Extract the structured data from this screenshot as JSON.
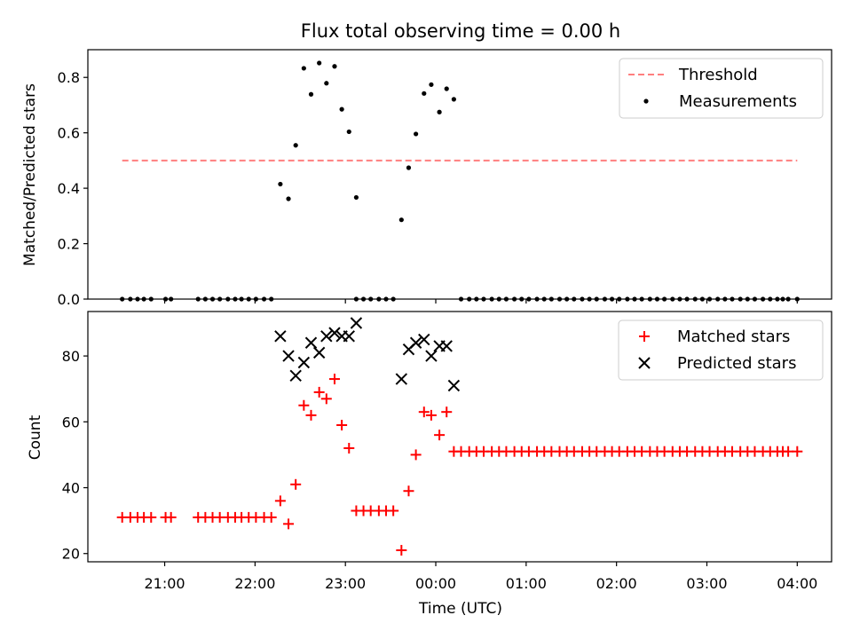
{
  "chart_data": {
    "type": "scatter",
    "title": "Flux total observing time = 0.00 h",
    "xlabel": "Time (UTC)",
    "x_ticks": [
      "21:00",
      "22:00",
      "23:00",
      "00:00",
      "01:00",
      "02:00",
      "03:00",
      "04:00"
    ],
    "x_tick_hours": [
      21,
      22,
      23,
      24,
      25,
      26,
      27,
      28
    ],
    "xlim": [
      20.15,
      28.38
    ],
    "panels": [
      {
        "ylabel": "Matched/Predicted stars",
        "ylim": [
          0,
          0.9
        ],
        "y_ticks": [
          0.0,
          0.2,
          0.4,
          0.6,
          0.8
        ],
        "y_tick_labels": [
          "0.0",
          "0.2",
          "0.4",
          "0.6",
          "0.8"
        ],
        "legend_position": "top-right",
        "threshold": {
          "name": "Threshold",
          "value": 0.5,
          "x_range": [
            20.53,
            28.0
          ],
          "color": "#ff7f7f"
        },
        "series": [
          {
            "name": "Measurements",
            "marker": "dot",
            "color": "#000000",
            "points": [
              [
                20.53,
                0
              ],
              [
                20.62,
                0
              ],
              [
                20.7,
                0
              ],
              [
                20.77,
                0
              ],
              [
                20.85,
                0
              ],
              [
                21.01,
                0
              ],
              [
                21.07,
                0
              ],
              [
                21.37,
                0
              ],
              [
                21.45,
                0
              ],
              [
                21.53,
                0
              ],
              [
                21.61,
                0
              ],
              [
                21.7,
                0
              ],
              [
                21.78,
                0
              ],
              [
                21.85,
                0
              ],
              [
                21.93,
                0
              ],
              [
                22.01,
                0
              ],
              [
                22.1,
                0
              ],
              [
                22.18,
                0
              ],
              [
                22.28,
                0.415
              ],
              [
                22.37,
                0.362
              ],
              [
                22.45,
                0.555
              ],
              [
                22.54,
                0.833
              ],
              [
                22.62,
                0.739
              ],
              [
                22.71,
                0.852
              ],
              [
                22.79,
                0.779
              ],
              [
                22.88,
                0.84
              ],
              [
                22.96,
                0.685
              ],
              [
                23.04,
                0.604
              ],
              [
                23.12,
                0.367
              ],
              [
                23.12,
                0
              ],
              [
                23.2,
                0
              ],
              [
                23.28,
                0
              ],
              [
                23.37,
                0
              ],
              [
                23.45,
                0
              ],
              [
                23.53,
                0
              ],
              [
                23.62,
                0.286
              ],
              [
                23.7,
                0.474
              ],
              [
                23.78,
                0.596
              ],
              [
                23.87,
                0.742
              ],
              [
                23.95,
                0.774
              ],
              [
                24.04,
                0.675
              ],
              [
                24.12,
                0.759
              ],
              [
                24.2,
                0.721
              ],
              [
                24.28,
                0
              ],
              [
                24.37,
                0
              ],
              [
                24.45,
                0
              ],
              [
                24.53,
                0
              ],
              [
                24.62,
                0
              ],
              [
                24.7,
                0
              ],
              [
                24.78,
                0
              ],
              [
                24.87,
                0
              ],
              [
                24.95,
                0
              ],
              [
                25.03,
                0
              ],
              [
                25.12,
                0
              ],
              [
                25.2,
                0
              ],
              [
                25.28,
                0
              ],
              [
                25.37,
                0
              ],
              [
                25.45,
                0
              ],
              [
                25.53,
                0
              ],
              [
                25.62,
                0
              ],
              [
                25.7,
                0
              ],
              [
                25.78,
                0
              ],
              [
                25.87,
                0
              ],
              [
                25.95,
                0
              ],
              [
                26.03,
                0
              ],
              [
                26.12,
                0
              ],
              [
                26.2,
                0
              ],
              [
                26.28,
                0
              ],
              [
                26.37,
                0
              ],
              [
                26.45,
                0
              ],
              [
                26.53,
                0
              ],
              [
                26.62,
                0
              ],
              [
                26.7,
                0
              ],
              [
                26.78,
                0
              ],
              [
                26.87,
                0
              ],
              [
                26.95,
                0
              ],
              [
                27.03,
                0
              ],
              [
                27.12,
                0
              ],
              [
                27.2,
                0
              ],
              [
                27.28,
                0
              ],
              [
                27.37,
                0
              ],
              [
                27.45,
                0
              ],
              [
                27.53,
                0
              ],
              [
                27.62,
                0
              ],
              [
                27.7,
                0
              ],
              [
                27.78,
                0
              ],
              [
                27.84,
                0
              ],
              [
                27.9,
                0
              ],
              [
                28.0,
                0
              ]
            ]
          }
        ]
      },
      {
        "ylabel": "Count",
        "ylim": [
          17.5,
          93.5
        ],
        "y_ticks": [
          20,
          40,
          60,
          80
        ],
        "y_tick_labels": [
          "20",
          "40",
          "60",
          "80"
        ],
        "legend_position": "top-right",
        "series": [
          {
            "name": "Matched stars",
            "marker": "plus",
            "color": "#ff0000",
            "points": [
              [
                20.53,
                31
              ],
              [
                20.62,
                31
              ],
              [
                20.7,
                31
              ],
              [
                20.77,
                31
              ],
              [
                20.85,
                31
              ],
              [
                21.01,
                31
              ],
              [
                21.07,
                31
              ],
              [
                21.37,
                31
              ],
              [
                21.45,
                31
              ],
              [
                21.53,
                31
              ],
              [
                21.61,
                31
              ],
              [
                21.7,
                31
              ],
              [
                21.78,
                31
              ],
              [
                21.85,
                31
              ],
              [
                21.93,
                31
              ],
              [
                22.01,
                31
              ],
              [
                22.1,
                31
              ],
              [
                22.18,
                31
              ],
              [
                22.28,
                36
              ],
              [
                22.37,
                29
              ],
              [
                22.45,
                41
              ],
              [
                22.54,
                65
              ],
              [
                22.62,
                62
              ],
              [
                22.71,
                69
              ],
              [
                22.79,
                67
              ],
              [
                22.88,
                73
              ],
              [
                22.96,
                59
              ],
              [
                23.04,
                52
              ],
              [
                23.12,
                33
              ],
              [
                23.2,
                33
              ],
              [
                23.28,
                33
              ],
              [
                23.37,
                33
              ],
              [
                23.45,
                33
              ],
              [
                23.53,
                33
              ],
              [
                23.62,
                21
              ],
              [
                23.7,
                39
              ],
              [
                23.78,
                50
              ],
              [
                23.87,
                63
              ],
              [
                23.95,
                62
              ],
              [
                24.04,
                56
              ],
              [
                24.12,
                63
              ],
              [
                24.2,
                51
              ],
              [
                24.28,
                51
              ],
              [
                24.37,
                51
              ],
              [
                24.45,
                51
              ],
              [
                24.53,
                51
              ],
              [
                24.62,
                51
              ],
              [
                24.7,
                51
              ],
              [
                24.78,
                51
              ],
              [
                24.87,
                51
              ],
              [
                24.95,
                51
              ],
              [
                25.03,
                51
              ],
              [
                25.12,
                51
              ],
              [
                25.2,
                51
              ],
              [
                25.28,
                51
              ],
              [
                25.37,
                51
              ],
              [
                25.45,
                51
              ],
              [
                25.53,
                51
              ],
              [
                25.62,
                51
              ],
              [
                25.7,
                51
              ],
              [
                25.78,
                51
              ],
              [
                25.87,
                51
              ],
              [
                25.95,
                51
              ],
              [
                26.03,
                51
              ],
              [
                26.12,
                51
              ],
              [
                26.2,
                51
              ],
              [
                26.28,
                51
              ],
              [
                26.37,
                51
              ],
              [
                26.45,
                51
              ],
              [
                26.53,
                51
              ],
              [
                26.62,
                51
              ],
              [
                26.7,
                51
              ],
              [
                26.78,
                51
              ],
              [
                26.87,
                51
              ],
              [
                26.95,
                51
              ],
              [
                27.03,
                51
              ],
              [
                27.12,
                51
              ],
              [
                27.2,
                51
              ],
              [
                27.28,
                51
              ],
              [
                27.37,
                51
              ],
              [
                27.45,
                51
              ],
              [
                27.53,
                51
              ],
              [
                27.62,
                51
              ],
              [
                27.7,
                51
              ],
              [
                27.78,
                51
              ],
              [
                27.84,
                51
              ],
              [
                27.9,
                51
              ],
              [
                28.0,
                51
              ]
            ]
          },
          {
            "name": "Predicted stars",
            "marker": "x",
            "color": "#000000",
            "points": [
              [
                22.28,
                86
              ],
              [
                22.37,
                80
              ],
              [
                22.45,
                74
              ],
              [
                22.54,
                78
              ],
              [
                22.62,
                84
              ],
              [
                22.71,
                81
              ],
              [
                22.79,
                86
              ],
              [
                22.88,
                87
              ],
              [
                22.96,
                86
              ],
              [
                23.04,
                86
              ],
              [
                23.12,
                90
              ],
              [
                23.62,
                73
              ],
              [
                23.7,
                82
              ],
              [
                23.78,
                84
              ],
              [
                23.87,
                85
              ],
              [
                23.95,
                80
              ],
              [
                24.04,
                83
              ],
              [
                24.12,
                83
              ],
              [
                24.2,
                71
              ]
            ]
          }
        ]
      }
    ]
  }
}
